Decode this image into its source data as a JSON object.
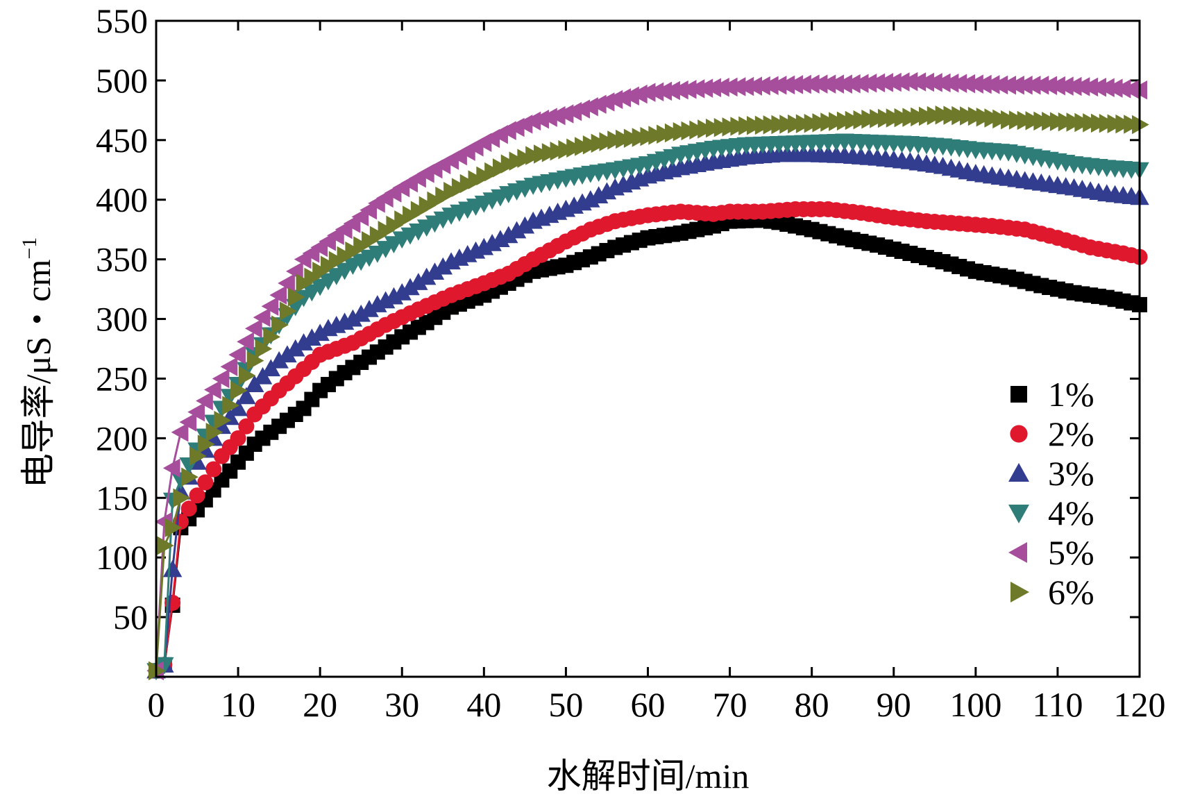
{
  "chart_data": {
    "type": "scatter",
    "title": "",
    "xlabel": "水解时间/min",
    "ylabel_main": "电导率/μS・cm",
    "ylabel_sup": "−1",
    "xlim": [
      0,
      120
    ],
    "ylim": [
      0,
      550
    ],
    "x_ticks": [
      0,
      10,
      20,
      30,
      40,
      50,
      60,
      70,
      80,
      90,
      100,
      110,
      120
    ],
    "y_ticks": [
      50,
      100,
      150,
      200,
      250,
      300,
      350,
      400,
      450,
      500,
      550
    ],
    "legend_position": "bottom-right",
    "grid": false,
    "series": [
      {
        "name": "1%",
        "marker": "square",
        "color": "#000000",
        "points": [
          [
            0,
            5
          ],
          [
            1,
            10
          ],
          [
            2,
            60
          ],
          [
            3,
            125
          ],
          [
            5,
            140
          ],
          [
            8,
            165
          ],
          [
            10,
            180
          ],
          [
            12,
            195
          ],
          [
            15,
            210
          ],
          [
            18,
            225
          ],
          [
            20,
            240
          ],
          [
            23,
            255
          ],
          [
            26,
            268
          ],
          [
            30,
            285
          ],
          [
            33,
            297
          ],
          [
            36,
            310
          ],
          [
            40,
            320
          ],
          [
            43,
            330
          ],
          [
            46,
            340
          ],
          [
            50,
            345
          ],
          [
            53,
            352
          ],
          [
            56,
            360
          ],
          [
            60,
            368
          ],
          [
            64,
            372
          ],
          [
            68,
            378
          ],
          [
            70,
            382
          ],
          [
            74,
            383
          ],
          [
            76,
            381
          ],
          [
            80,
            375
          ],
          [
            84,
            368
          ],
          [
            88,
            362
          ],
          [
            92,
            355
          ],
          [
            96,
            348
          ],
          [
            100,
            340
          ],
          [
            104,
            335
          ],
          [
            108,
            328
          ],
          [
            112,
            322
          ],
          [
            116,
            318
          ],
          [
            120,
            312
          ]
        ]
      },
      {
        "name": "2%",
        "marker": "circle",
        "color": "#e0182d",
        "points": [
          [
            0,
            5
          ],
          [
            1,
            10
          ],
          [
            2,
            62
          ],
          [
            3,
            130
          ],
          [
            5,
            152
          ],
          [
            8,
            185
          ],
          [
            10,
            200
          ],
          [
            12,
            220
          ],
          [
            15,
            240
          ],
          [
            18,
            258
          ],
          [
            20,
            270
          ],
          [
            24,
            280
          ],
          [
            28,
            295
          ],
          [
            32,
            308
          ],
          [
            36,
            320
          ],
          [
            40,
            330
          ],
          [
            43,
            338
          ],
          [
            46,
            350
          ],
          [
            50,
            365
          ],
          [
            53,
            375
          ],
          [
            56,
            382
          ],
          [
            60,
            387
          ],
          [
            64,
            390
          ],
          [
            68,
            388
          ],
          [
            70,
            390
          ],
          [
            74,
            390
          ],
          [
            78,
            392
          ],
          [
            82,
            392
          ],
          [
            86,
            389
          ],
          [
            90,
            385
          ],
          [
            94,
            382
          ],
          [
            98,
            380
          ],
          [
            102,
            378
          ],
          [
            106,
            375
          ],
          [
            110,
            368
          ],
          [
            114,
            360
          ],
          [
            118,
            355
          ],
          [
            120,
            352
          ]
        ]
      },
      {
        "name": "3%",
        "marker": "triangle-up",
        "color": "#333d8f",
        "points": [
          [
            0,
            5
          ],
          [
            1,
            10
          ],
          [
            2,
            90
          ],
          [
            3,
            155
          ],
          [
            5,
            180
          ],
          [
            8,
            210
          ],
          [
            10,
            225
          ],
          [
            12,
            245
          ],
          [
            15,
            265
          ],
          [
            18,
            280
          ],
          [
            21,
            292
          ],
          [
            24,
            300
          ],
          [
            27,
            312
          ],
          [
            30,
            322
          ],
          [
            33,
            335
          ],
          [
            36,
            348
          ],
          [
            40,
            360
          ],
          [
            43,
            370
          ],
          [
            46,
            382
          ],
          [
            50,
            392
          ],
          [
            53,
            400
          ],
          [
            56,
            410
          ],
          [
            60,
            420
          ],
          [
            64,
            427
          ],
          [
            68,
            432
          ],
          [
            72,
            436
          ],
          [
            76,
            438
          ],
          [
            80,
            438
          ],
          [
            84,
            437
          ],
          [
            88,
            435
          ],
          [
            92,
            432
          ],
          [
            96,
            428
          ],
          [
            100,
            422
          ],
          [
            104,
            418
          ],
          [
            108,
            414
          ],
          [
            112,
            410
          ],
          [
            116,
            405
          ],
          [
            120,
            402
          ]
        ]
      },
      {
        "name": "4%",
        "marker": "triangle-down",
        "color": "#2e7d79",
        "points": [
          [
            0,
            5
          ],
          [
            1,
            10
          ],
          [
            2,
            148
          ],
          [
            3,
            165
          ],
          [
            5,
            190
          ],
          [
            8,
            225
          ],
          [
            10,
            245
          ],
          [
            12,
            270
          ],
          [
            15,
            295
          ],
          [
            18,
            318
          ],
          [
            21,
            332
          ],
          [
            24,
            345
          ],
          [
            27,
            355
          ],
          [
            30,
            367
          ],
          [
            33,
            377
          ],
          [
            36,
            387
          ],
          [
            40,
            397
          ],
          [
            43,
            405
          ],
          [
            46,
            412
          ],
          [
            50,
            418
          ],
          [
            53,
            422
          ],
          [
            56,
            425
          ],
          [
            60,
            430
          ],
          [
            64,
            438
          ],
          [
            68,
            443
          ],
          [
            72,
            446
          ],
          [
            76,
            447
          ],
          [
            80,
            448
          ],
          [
            84,
            449
          ],
          [
            88,
            448
          ],
          [
            92,
            447
          ],
          [
            96,
            445
          ],
          [
            100,
            442
          ],
          [
            104,
            440
          ],
          [
            108,
            435
          ],
          [
            112,
            430
          ],
          [
            116,
            427
          ],
          [
            120,
            425
          ]
        ]
      },
      {
        "name": "5%",
        "marker": "triangle-left",
        "color": "#a64d9c",
        "points": [
          [
            0,
            5
          ],
          [
            1,
            130
          ],
          [
            2,
            175
          ],
          [
            3,
            205
          ],
          [
            5,
            222
          ],
          [
            8,
            250
          ],
          [
            10,
            270
          ],
          [
            12,
            292
          ],
          [
            15,
            320
          ],
          [
            18,
            350
          ],
          [
            21,
            365
          ],
          [
            24,
            380
          ],
          [
            27,
            397
          ],
          [
            30,
            410
          ],
          [
            33,
            422
          ],
          [
            36,
            433
          ],
          [
            40,
            448
          ],
          [
            43,
            458
          ],
          [
            46,
            466
          ],
          [
            50,
            472
          ],
          [
            53,
            478
          ],
          [
            56,
            484
          ],
          [
            60,
            490
          ],
          [
            64,
            492
          ],
          [
            68,
            494
          ],
          [
            72,
            495
          ],
          [
            76,
            496
          ],
          [
            80,
            497
          ],
          [
            84,
            497
          ],
          [
            88,
            498
          ],
          [
            92,
            499
          ],
          [
            96,
            498
          ],
          [
            100,
            497
          ],
          [
            104,
            496
          ],
          [
            108,
            496
          ],
          [
            112,
            495
          ],
          [
            116,
            494
          ],
          [
            120,
            492
          ]
        ]
      },
      {
        "name": "6%",
        "marker": "triangle-right",
        "color": "#6e7a2a",
        "points": [
          [
            0,
            5
          ],
          [
            1,
            110
          ],
          [
            2,
            125
          ],
          [
            3,
            150
          ],
          [
            5,
            185
          ],
          [
            8,
            215
          ],
          [
            10,
            240
          ],
          [
            12,
            265
          ],
          [
            15,
            295
          ],
          [
            18,
            330
          ],
          [
            21,
            345
          ],
          [
            24,
            357
          ],
          [
            27,
            370
          ],
          [
            30,
            383
          ],
          [
            33,
            395
          ],
          [
            36,
            407
          ],
          [
            40,
            420
          ],
          [
            43,
            430
          ],
          [
            46,
            437
          ],
          [
            50,
            442
          ],
          [
            53,
            446
          ],
          [
            56,
            450
          ],
          [
            60,
            453
          ],
          [
            64,
            457
          ],
          [
            68,
            460
          ],
          [
            72,
            462
          ],
          [
            76,
            463
          ],
          [
            80,
            464
          ],
          [
            84,
            466
          ],
          [
            88,
            468
          ],
          [
            92,
            469
          ],
          [
            96,
            471
          ],
          [
            100,
            470
          ],
          [
            104,
            467
          ],
          [
            108,
            466
          ],
          [
            112,
            465
          ],
          [
            116,
            464
          ],
          [
            120,
            463
          ]
        ]
      }
    ]
  }
}
